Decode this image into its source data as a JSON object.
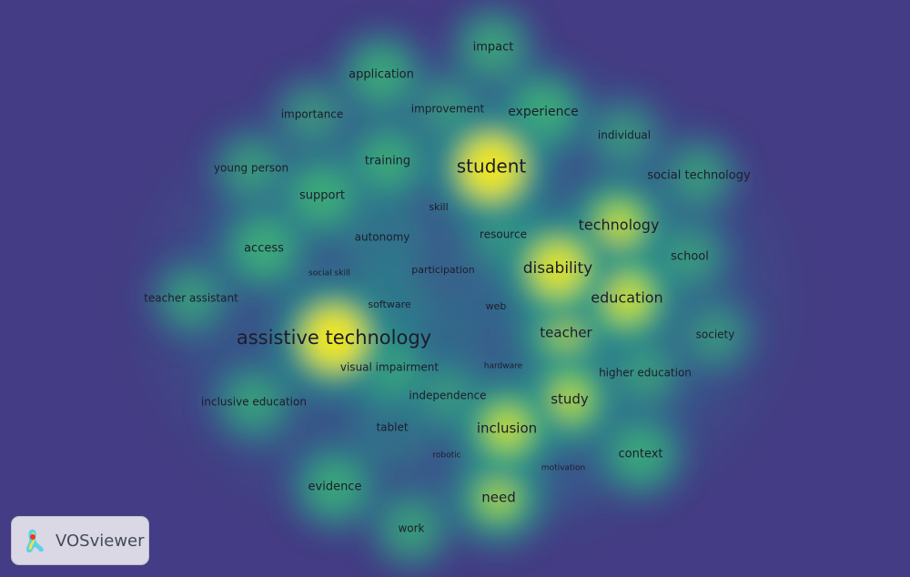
{
  "visualization": "density",
  "colors": {
    "background": "#443c84",
    "low": "#2a8a8c",
    "mid": "#3fbc73",
    "high": "#f0e61e"
  },
  "terms": [
    {
      "label": "impact",
      "density": 0.45
    },
    {
      "label": "application",
      "density": 0.5
    },
    {
      "label": "importance",
      "density": 0.3
    },
    {
      "label": "improvement",
      "density": 0.3
    },
    {
      "label": "experience",
      "density": 0.55
    },
    {
      "label": "individual",
      "density": 0.3
    },
    {
      "label": "student",
      "density": 1.0
    },
    {
      "label": "young person",
      "density": 0.35
    },
    {
      "label": "training",
      "density": 0.5
    },
    {
      "label": "social technology",
      "density": 0.35
    },
    {
      "label": "support",
      "density": 0.55
    },
    {
      "label": "skill",
      "density": 0.2
    },
    {
      "label": "technology",
      "density": 0.75
    },
    {
      "label": "autonomy",
      "density": 0.25
    },
    {
      "label": "resource",
      "density": 0.3
    },
    {
      "label": "access",
      "density": 0.55
    },
    {
      "label": "school",
      "density": 0.35
    },
    {
      "label": "disability",
      "density": 0.9
    },
    {
      "label": "social skill",
      "density": 0.1
    },
    {
      "label": "participation",
      "density": 0.2
    },
    {
      "label": "education",
      "density": 0.8
    },
    {
      "label": "teacher assistant",
      "density": 0.35
    },
    {
      "label": "software",
      "density": 0.25
    },
    {
      "label": "web",
      "density": 0.15
    },
    {
      "label": "assistive technology",
      "density": 1.0
    },
    {
      "label": "teacher",
      "density": 0.65
    },
    {
      "label": "society",
      "density": 0.3
    },
    {
      "label": "visual impairment",
      "density": 0.45
    },
    {
      "label": "hardware",
      "density": 0.1
    },
    {
      "label": "higher education",
      "density": 0.35
    },
    {
      "label": "inclusive education",
      "density": 0.4
    },
    {
      "label": "independence",
      "density": 0.3
    },
    {
      "label": "study",
      "density": 0.7
    },
    {
      "label": "tablet",
      "density": 0.25
    },
    {
      "label": "inclusion",
      "density": 0.75
    },
    {
      "label": "robotic",
      "density": 0.1
    },
    {
      "label": "motivation",
      "density": 0.15
    },
    {
      "label": "context",
      "density": 0.5
    },
    {
      "label": "evidence",
      "density": 0.5
    },
    {
      "label": "need",
      "density": 0.65
    },
    {
      "label": "work",
      "density": 0.4
    }
  ],
  "logo": {
    "text": "VOSviewer"
  }
}
